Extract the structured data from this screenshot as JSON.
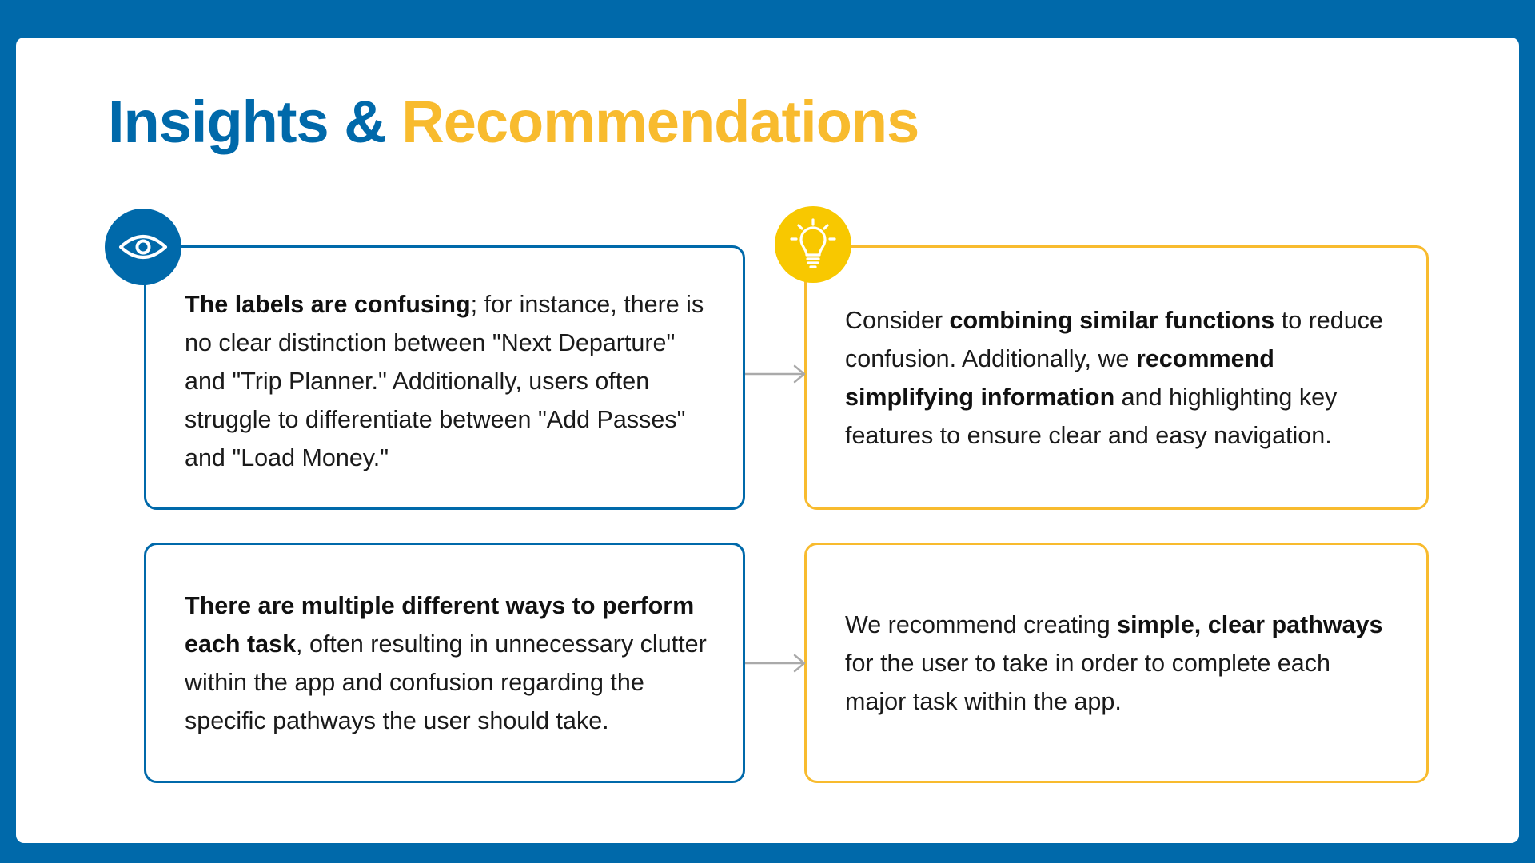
{
  "slide": {
    "title_part1": "Insights &",
    "title_part2": "Recommendations",
    "colors": {
      "background": "#0069AA",
      "primary_blue": "#0069AA",
      "accent_yellow": "#F8BB2E",
      "bulb_yellow": "#F8C800",
      "arrow_gray": "#AAAAAA"
    }
  },
  "rows": [
    {
      "insight": {
        "icon": "eye-icon",
        "bold1": "The labels are confusing",
        "text1": "; for instance, there is no clear distinction between \"Next Departure\" and \"Trip Planner.\" Additionally, users often struggle to differentiate between \"Add Passes\" and \"Load Money.\""
      },
      "arrow_icon": "arrow-right-icon",
      "recommendation": {
        "icon": "lightbulb-icon",
        "text1": "Consider ",
        "bold1": "combining similar functions",
        "text2": " to reduce confusion. Additionally, we ",
        "bold2": "recommend simplifying information",
        "text3": " and highlighting key features to ensure clear and easy navigation."
      }
    },
    {
      "insight": {
        "bold1": "There are multiple different ways to perform each task",
        "text1": ", often resulting in unnecessary clutter within the app and confusion regarding the specific pathways the user should take."
      },
      "arrow_icon": "arrow-right-icon",
      "recommendation": {
        "text1": "We recommend creating ",
        "bold1": "simple, clear pathways",
        "text2": " for the user to take in order to complete each major task within the app."
      }
    }
  ]
}
